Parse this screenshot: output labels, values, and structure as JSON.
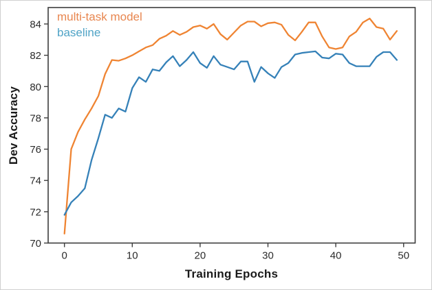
{
  "figure": {
    "background": "#ffffff",
    "border_color": "#cfcfcf"
  },
  "chart_data": {
    "type": "line",
    "title": "",
    "xlabel": "Training Epochs",
    "ylabel": "Dev Accuracy",
    "grid": false,
    "legend_position": "upper-left",
    "axis_color": "#3c3c3c",
    "tick_label_color": "#2b2b2b",
    "x_ticks": [
      0,
      10,
      20,
      30,
      40,
      50
    ],
    "y_ticks": [
      70,
      72,
      74,
      76,
      78,
      80,
      82,
      84
    ],
    "xlim": [
      -2.4,
      51.7
    ],
    "ylim": [
      70,
      85.05
    ],
    "x": [
      0,
      1,
      2,
      3,
      4,
      5,
      6,
      7,
      8,
      9,
      10,
      11,
      12,
      13,
      14,
      15,
      16,
      17,
      18,
      19,
      20,
      21,
      22,
      23,
      24,
      25,
      26,
      27,
      28,
      29,
      30,
      31,
      32,
      33,
      34,
      35,
      36,
      37,
      38,
      39,
      40,
      41,
      42,
      43,
      44,
      45,
      46,
      47,
      48,
      49
    ],
    "series": [
      {
        "name": "multi-task model",
        "color": "#ef8432",
        "legend_color": "#e8864f",
        "values": [
          70.6,
          76.0,
          77.1,
          77.9,
          78.6,
          79.4,
          80.8,
          81.7,
          81.65,
          81.8,
          82.0,
          82.25,
          82.5,
          82.65,
          83.05,
          83.25,
          83.55,
          83.3,
          83.5,
          83.8,
          83.9,
          83.7,
          84.0,
          83.35,
          83.0,
          83.45,
          83.9,
          84.15,
          84.15,
          83.85,
          84.05,
          84.1,
          83.95,
          83.3,
          82.95,
          83.5,
          84.1,
          84.1,
          83.2,
          82.5,
          82.4,
          82.5,
          83.2,
          83.5,
          84.1,
          84.35,
          83.8,
          83.7,
          83.0,
          83.55
        ]
      },
      {
        "name": "baseline",
        "color": "#3581b8",
        "legend_color": "#4fa3c6",
        "values": [
          71.8,
          72.6,
          73.0,
          73.5,
          75.3,
          76.7,
          78.2,
          78.0,
          78.6,
          78.4,
          79.9,
          80.6,
          80.3,
          81.1,
          81.0,
          81.55,
          81.95,
          81.3,
          81.7,
          82.2,
          81.5,
          81.2,
          81.95,
          81.4,
          81.25,
          81.1,
          81.6,
          81.6,
          80.3,
          81.25,
          80.85,
          80.55,
          81.25,
          81.5,
          82.05,
          82.15,
          82.2,
          82.25,
          81.85,
          81.8,
          82.1,
          82.05,
          81.5,
          81.3,
          81.3,
          81.3,
          81.9,
          82.2,
          82.2,
          81.7
        ]
      }
    ]
  }
}
